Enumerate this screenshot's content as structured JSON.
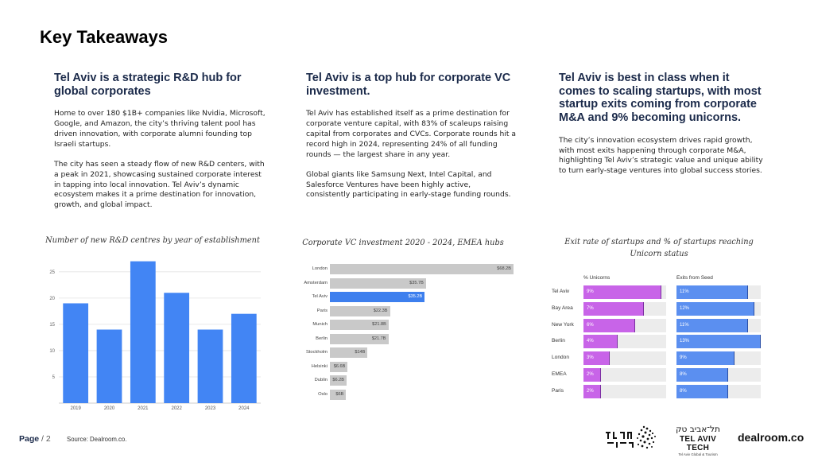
{
  "page": {
    "title": "Key Takeaways"
  },
  "columns": [
    {
      "heading": "Tel Aviv is a strategic R&D hub for global corporates",
      "paragraphs": [
        "Home to over 180 $1B+ companies like Nvidia, Microsoft, Google, and Amazon, the city’s thriving talent pool has driven innovation, with corporate alumni founding top Israeli startups.",
        "The city has seen a steady flow of new R&D centers, with a peak in 2021, showcasing sustained corporate interest in tapping into local innovation.  Tel Aviv’s dynamic ecosystem makes it a prime destination for innovation, growth, and global impact."
      ]
    },
    {
      "heading": "Tel Aviv is a top hub for corporate VC investment.",
      "paragraphs": [
        "Tel Aviv has established itself as a prime destination for corporate venture capital, with 83% of scaleups raising capital from corporates and CVCs. Corporate rounds hit a record high in 2024, representing 24% of all funding rounds — the largest share in any year.",
        "Global giants like Samsung Next, Intel Capital, and Salesforce Ventures have been highly active, consistently participating in early-stage funding rounds."
      ]
    },
    {
      "heading": "Tel Aviv is best in class when it comes to scaling startups, with most startup exits coming from corporate M&A and 9% becoming unicorns.",
      "paragraphs": [
        "The city’s innovation ecosystem drives rapid growth, with most exits happening through corporate M&A, highlighting Tel Aviv’s strategic value and unique ability to turn early-stage ventures into global success stories."
      ]
    }
  ],
  "chart_data": [
    {
      "type": "bar",
      "title": "Number of new R&D centres by year of establishment",
      "categories": [
        "2019",
        "2020",
        "2021",
        "2022",
        "2023",
        "2024"
      ],
      "values": [
        19,
        14,
        27,
        21,
        14,
        17
      ],
      "ylim": [
        0,
        28
      ],
      "yticks": [
        "5",
        "10",
        "15",
        "20",
        "25"
      ],
      "ytick_values": [
        5,
        10,
        15,
        20,
        25
      ],
      "grid": true,
      "color": "#4285f4"
    },
    {
      "type": "bar",
      "orientation": "horizontal",
      "title": "Corporate VC investment 2020 - 2024, EMEA hubs",
      "categories": [
        "London",
        "Amsterdam",
        "Tel Aviv",
        "Paris",
        "Munich",
        "Berlin",
        "Stockholm",
        "Helsinki",
        "Dublin",
        "Oslo"
      ],
      "values": [
        68.2,
        35.7,
        35.2,
        22.3,
        21.8,
        21.7,
        14,
        6.6,
        6.2,
        6
      ],
      "value_labels": [
        "$68.2B",
        "$35.7B",
        "$35.2B",
        "$22.3B",
        "$21.8B",
        "$21.7B",
        "$14B",
        "$6.6B",
        "$6.2B",
        "$6B"
      ],
      "highlight": "Tel Aviv",
      "xlim": [
        0,
        68.2
      ],
      "colors": {
        "bar": "#c9c9c9",
        "highlight": "#3d7fee"
      }
    },
    {
      "type": "bar",
      "orientation": "horizontal",
      "title": "Exit rate of startups and % of startups reaching Unicorn status",
      "categories": [
        "Tel Aviv",
        "Bay Area",
        "New York",
        "Berlin",
        "London",
        "EMEA",
        "Paris"
      ],
      "series": [
        {
          "name": "% Unicorns",
          "values": [
            9,
            7,
            6,
            4,
            3,
            2,
            2
          ],
          "labels": [
            "9%",
            "7%",
            "6%",
            "4%",
            "3%",
            "2%",
            "2%"
          ],
          "max": 9.6,
          "color": "#c864e8"
        },
        {
          "name": "Exits from Seed",
          "values": [
            11,
            12,
            11,
            13,
            9,
            8,
            8
          ],
          "labels": [
            "11%",
            "12%",
            "11%",
            "13%",
            "9%",
            "8%",
            "8%"
          ],
          "max": 13,
          "color": "#5b8ff0"
        }
      ]
    }
  ],
  "footer": {
    "page_label": "Page",
    "page_number": "/ 2",
    "source": "Source:  Dealroom.co.",
    "tech_hebrew": "תל־אביב טק",
    "tech_english": "TEL AVIV TECH",
    "tech_subtitle": "Tel Aviv Global & Tourism",
    "brand": "dealroom.co"
  }
}
